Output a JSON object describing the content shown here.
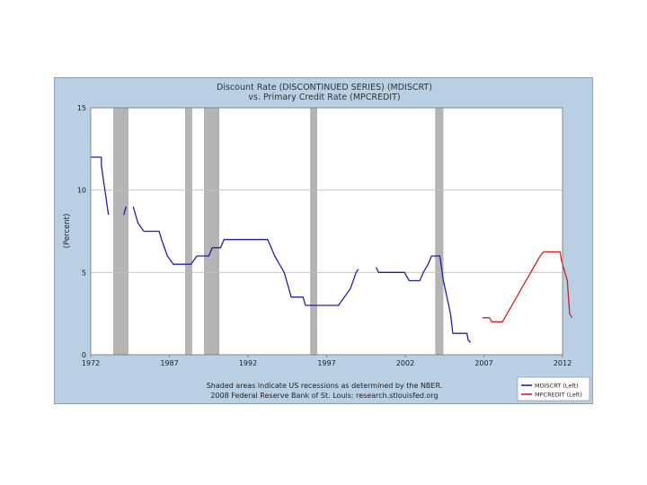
{
  "chart_data": {
    "type": "line",
    "title": "Discount Rate (DISCONTINUED SERIES) (MDISCRT)",
    "subtitle": "vs. Primary Credit Rate (MPCREDIT)",
    "ylabel": "(Percent)",
    "xlabel": "",
    "xlim": [
      1972,
      2012
    ],
    "ylim": [
      0,
      15
    ],
    "x_ticks": [
      "1972",
      "1987",
      "1992",
      "1997",
      "2002",
      "2007",
      "2012"
    ],
    "y_ticks": [
      "0",
      "5",
      "10",
      "15"
    ],
    "grid": true,
    "legend_position": "bottom-right",
    "recessions": [
      [
        1973.9,
        1975.2
      ],
      [
        1980.0,
        1980.6
      ],
      [
        1981.6,
        1982.9
      ],
      [
        1990.6,
        1991.2
      ],
      [
        2001.2,
        2001.9
      ]
    ],
    "series": [
      {
        "name": "MDISCRT (Left)",
        "color": "#1f1fb4",
        "segments": [
          [
            [
              1972.0,
              12.0
            ],
            [
              1972.9,
              12.0
            ],
            [
              1972.9,
              11.5
            ],
            [
              1973.0,
              11.0
            ],
            [
              1973.5,
              8.5
            ]
          ],
          [
            [
              1974.8,
              8.5
            ],
            [
              1975.0,
              9.0
            ]
          ],
          [
            [
              1975.6,
              9.0
            ],
            [
              1976.0,
              8.0
            ],
            [
              1976.5,
              7.5
            ],
            [
              1977.8,
              7.5
            ],
            [
              1978.0,
              7.0
            ],
            [
              1978.5,
              6.0
            ],
            [
              1979.0,
              5.5
            ],
            [
              1980.5,
              5.5
            ],
            [
              1981.0,
              6.0
            ],
            [
              1982.0,
              6.0
            ],
            [
              1982.3,
              6.5
            ],
            [
              1983.0,
              6.5
            ],
            [
              1983.3,
              7.0
            ],
            [
              1984.0,
              7.0
            ],
            [
              1987.0,
              7.0
            ],
            [
              1987.3,
              6.5
            ],
            [
              1987.6,
              6.0
            ],
            [
              1988.0,
              5.5
            ],
            [
              1988.4,
              5.0
            ],
            [
              1988.8,
              4.0
            ],
            [
              1989.0,
              3.5
            ],
            [
              1990.0,
              3.5
            ],
            [
              1990.2,
              3.0
            ],
            [
              1993.0,
              3.0
            ],
            [
              1993.5,
              3.5
            ],
            [
              1994.0,
              4.0
            ],
            [
              1994.5,
              5.0
            ],
            [
              1994.7,
              5.2
            ]
          ],
          [
            [
              1996.2,
              5.3
            ],
            [
              1996.4,
              5.0
            ],
            [
              1998.6,
              5.0
            ],
            [
              1999.0,
              4.5
            ],
            [
              1999.9,
              4.5
            ],
            [
              2000.2,
              5.0
            ],
            [
              2000.6,
              5.5
            ],
            [
              2000.9,
              6.0
            ],
            [
              2001.6,
              6.0
            ],
            [
              2001.9,
              4.5
            ],
            [
              2002.2,
              3.5
            ],
            [
              2002.5,
              2.5
            ],
            [
              2002.7,
              1.3
            ],
            [
              2003.9,
              1.3
            ],
            [
              2004.0,
              0.9
            ],
            [
              2004.2,
              0.75
            ]
          ]
        ]
      },
      {
        "name": "MPCREDIT (Left)",
        "color": "#d41f1f",
        "segments": [
          [
            [
              2005.2,
              2.25
            ],
            [
              2005.8,
              2.25
            ],
            [
              2006.0,
              2.0
            ],
            [
              2006.9,
              2.0
            ],
            [
              2007.1,
              2.25
            ],
            [
              2010.1,
              6.0
            ],
            [
              2010.4,
              6.25
            ],
            [
              2011.8,
              6.25
            ],
            [
              2011.9,
              5.75
            ],
            [
              2012.2,
              5.0
            ],
            [
              2012.4,
              4.5
            ],
            [
              2012.5,
              3.5
            ],
            [
              2012.6,
              2.5
            ],
            [
              2012.8,
              2.25
            ]
          ]
        ]
      }
    ],
    "notes": [
      "Shaded areas indicate US recessions as determined by the NBER.",
      "2008 Federal Reserve Bank of St. Louis: research.stlouisfed.org"
    ]
  },
  "colors": {
    "frame_bg": "#b8cfe4",
    "plot_bg": "#ffffff",
    "grid": "#c0c0c0",
    "recession": "#b4b4b4"
  }
}
